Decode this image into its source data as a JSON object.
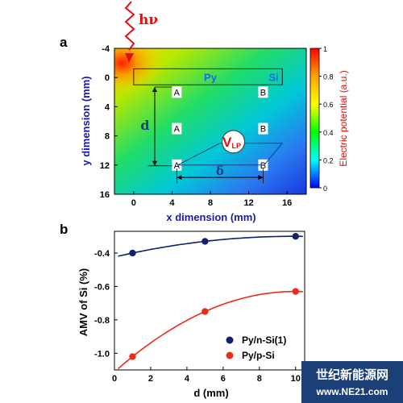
{
  "panel_a": {
    "label": "a",
    "excitation_label": "hν",
    "strip_labels": {
      "left": "Py",
      "right": "Si"
    },
    "voltage_label": {
      "main": "V",
      "sub": "LP"
    },
    "distance_labels": {
      "vertical": "d",
      "horizontal": "δ"
    },
    "electrode_labels": [
      {
        "text": "A",
        "x": 4.5,
        "y": 2.0
      },
      {
        "text": "B",
        "x": 13.5,
        "y": 2.0
      },
      {
        "text": "A",
        "x": 4.5,
        "y": 7.0
      },
      {
        "text": "B",
        "x": 13.5,
        "y": 7.0
      },
      {
        "text": "A",
        "x": 4.5,
        "y": 12.0
      },
      {
        "text": "B",
        "x": 13.5,
        "y": 12.0
      }
    ],
    "colorbar": {
      "title": "Electric potential (a.u.)",
      "ticks": [
        "1",
        "0.8",
        "0.6",
        "0.4",
        "0.2",
        "0"
      ],
      "colors": [
        "#ff0000",
        "#ffa500",
        "#ffff00",
        "#00ff00",
        "#00ffff",
        "#0000ff"
      ]
    }
  },
  "panel_b": {
    "label": "b",
    "legend": [
      {
        "text": "Py/n-Si(1)",
        "color": "#102070"
      },
      {
        "text": "Py/p-Si",
        "color": "#ee2a1a"
      }
    ]
  },
  "watermark": {
    "line1": "世纪新能源网",
    "line2": "www.NE21.com"
  },
  "chart_data": [
    {
      "type": "heatmap",
      "title": "",
      "xlabel": "x dimension (mm)",
      "ylabel": "y dimension (mm)",
      "xlim": [
        -2,
        18
      ],
      "ylim": [
        -4,
        16
      ],
      "y_inverted": true,
      "xticks": [
        "0",
        "4",
        "8",
        "12",
        "16"
      ],
      "yticks": [
        "-4",
        "0",
        "4",
        "8",
        "12",
        "16"
      ],
      "description_values": {
        "max_potential_location": [
          0,
          0
        ],
        "value_range": [
          0,
          1
        ]
      }
    },
    {
      "type": "scatter",
      "title": "",
      "xlabel": "d (mm)",
      "ylabel": "AMV of Si (%)",
      "xlim": [
        0,
        10.5
      ],
      "ylim": [
        -1.1,
        -0.27
      ],
      "xticks": [
        "0",
        "2",
        "4",
        "6",
        "8",
        "10"
      ],
      "yticks": [
        "-0.4",
        "-0.6",
        "-0.8",
        "-1.0"
      ],
      "series": [
        {
          "name": "Py/n-Si(1)",
          "x": [
            1,
            5,
            10
          ],
          "y": [
            -0.4,
            -0.33,
            -0.3
          ],
          "color": "#102070"
        },
        {
          "name": "Py/p-Si",
          "x": [
            1,
            5,
            10
          ],
          "y": [
            -1.02,
            -0.75,
            -0.63
          ],
          "color": "#ee2a1a"
        }
      ]
    }
  ]
}
